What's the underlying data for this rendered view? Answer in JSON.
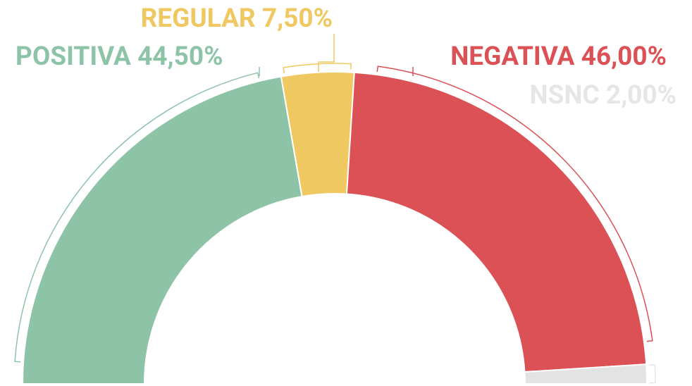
{
  "chart_data": {
    "type": "half-donut",
    "categories": [
      "POSITIVA",
      "REGULAR",
      "NEGATIVA",
      "NSNC"
    ],
    "values": [
      44.5,
      7.5,
      46,
      2
    ],
    "value_labels": [
      "44,50%",
      "7,50%",
      "46,00%",
      "2,00%"
    ],
    "colors": [
      "#8dc4a7",
      "#f0c862",
      "#db5155",
      "#e3e3e3"
    ]
  }
}
